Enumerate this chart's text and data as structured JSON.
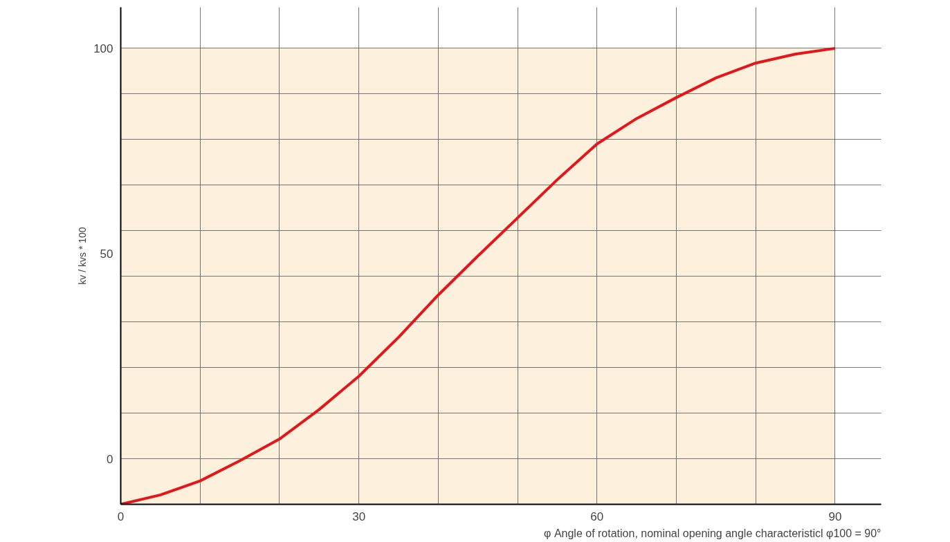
{
  "chart_data": {
    "type": "line",
    "xlabel": "φ Angle of rotation, nominal opening angle characteristicl φ100 = 90°",
    "ylabel": "kv / kvs * 100",
    "series": [
      {
        "color": "#e3161b",
        "x": [
          0,
          5,
          10,
          15,
          20,
          25,
          30,
          35,
          40,
          45,
          50,
          55,
          60,
          65,
          70,
          75,
          80,
          85,
          90
        ],
        "values": [
          -11.1,
          -8.8,
          -5.4,
          -0.5,
          4.8,
          12,
          20.1,
          29.6,
          39.9,
          49.4,
          58.7,
          68,
          76.7,
          82.9,
          88,
          92.8,
          96.4,
          98.6,
          100
        ]
      }
    ],
    "xlim": [
      0,
      95.8
    ],
    "ylim": [
      -11.1,
      110
    ],
    "xticks": [
      0,
      {
        "value": 10,
        "label": null
      },
      {
        "value": 20,
        "label": null
      },
      30,
      {
        "value": 40,
        "label": null
      },
      {
        "value": 50,
        "label": null
      },
      60,
      {
        "value": 70,
        "label": null
      },
      {
        "value": 80,
        "label": null
      },
      90
    ],
    "yticks": [
      {
        "value": -11.1,
        "label": null
      },
      0,
      {
        "value": 11.1,
        "label": null
      },
      {
        "value": 22.2,
        "label": null
      },
      {
        "value": 33.3,
        "label": null
      },
      {
        "value": 44.4,
        "label": null
      },
      {
        "value": 50,
        "label": "50"
      },
      {
        "value": 55.6,
        "label": null
      },
      {
        "value": 66.7,
        "label": null
      },
      {
        "value": 77.8,
        "label": null
      },
      {
        "value": 88.9,
        "label": null
      },
      100
    ],
    "grid": true,
    "marker": "none",
    "line_style": "solid"
  }
}
